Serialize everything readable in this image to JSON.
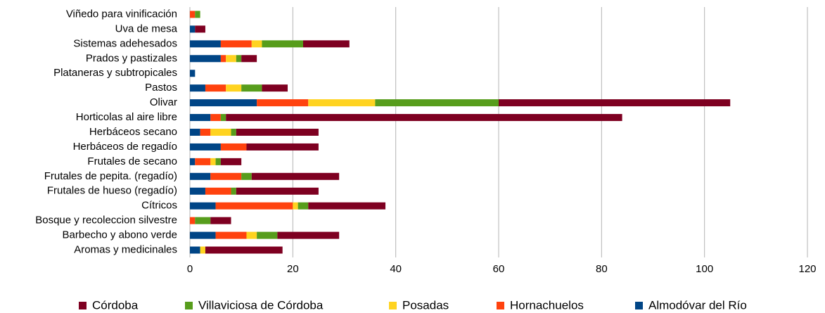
{
  "chart_data": {
    "type": "stacked-barh",
    "categories": [
      "Viñedo para vinificación",
      "Uva de mesa",
      "Sistemas adehesados",
      "Prados y pastizales",
      "Plataneras y subtropicales",
      "Pastos",
      "Olivar",
      "Horticolas al aire libre",
      "Herbáceos secano",
      "Herbáceos de regadío",
      "Frutales de secano",
      "Frutales de pepita. (regadío)",
      "Frutales de hueso (regadío)",
      "Cítricos",
      "Bosque y recoleccion silvestre",
      "Barbecho y abono verde",
      "Aromas y medicinales"
    ],
    "series": [
      {
        "name": "Almodóvar del Río",
        "color": "#004586",
        "values": [
          0,
          1,
          6,
          6,
          1,
          3,
          13,
          4,
          2,
          6,
          1,
          4,
          3,
          5,
          0,
          5,
          2
        ]
      },
      {
        "name": "Hornachuelos",
        "color": "#ff420e",
        "values": [
          1,
          0,
          6,
          1,
          0,
          4,
          10,
          2,
          2,
          5,
          3,
          6,
          5,
          15,
          1,
          6,
          0
        ]
      },
      {
        "name": "Posadas",
        "color": "#ffd320",
        "values": [
          0,
          0,
          2,
          2,
          0,
          3,
          13,
          0,
          4,
          0,
          1,
          0,
          0,
          1,
          0,
          2,
          1
        ]
      },
      {
        "name": "Villaviciosa de Córdoba",
        "color": "#579d1c",
        "values": [
          1,
          0,
          8,
          1,
          0,
          4,
          24,
          1,
          1,
          0,
          1,
          2,
          1,
          2,
          3,
          4,
          0
        ]
      },
      {
        "name": "Córdoba",
        "color": "#7e0021",
        "values": [
          0,
          2,
          9,
          3,
          0,
          5,
          45,
          77,
          16,
          14,
          4,
          17,
          16,
          15,
          4,
          12,
          15
        ]
      }
    ],
    "xlim": [
      0,
      120
    ],
    "xticks": [
      0,
      20,
      40,
      60,
      80,
      100,
      120
    ],
    "grid": true,
    "legend": "bottom"
  }
}
